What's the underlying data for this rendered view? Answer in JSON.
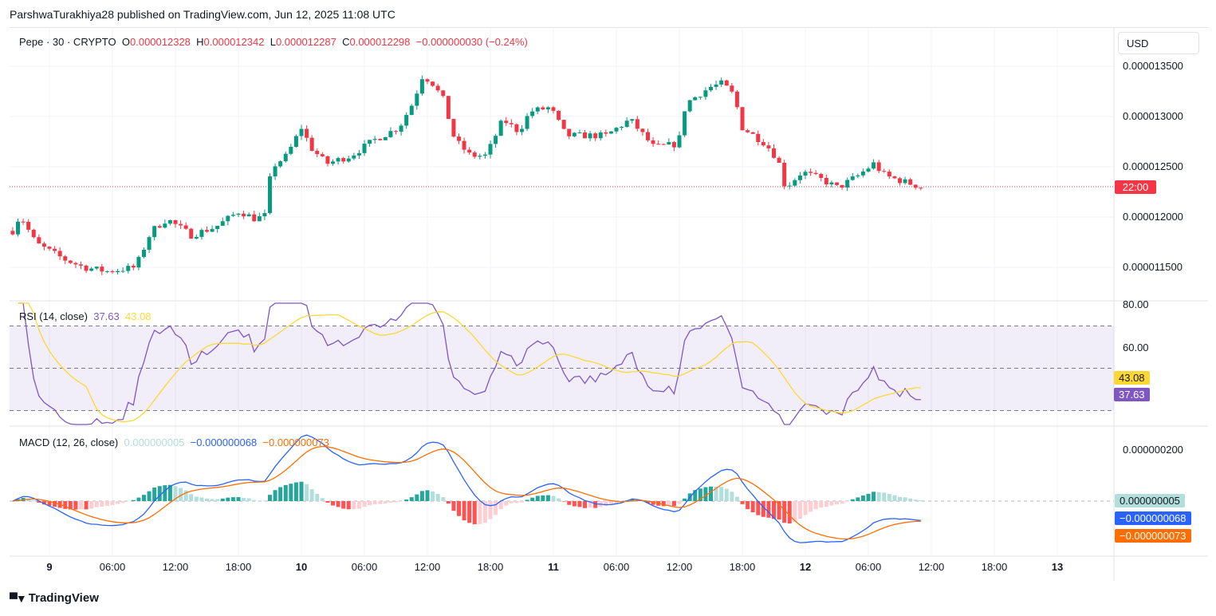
{
  "publish_line": "ParshwaTurakhiya28 published on TradingView.com, Jun 12, 2025 11:08 UTC",
  "legend": {
    "symbol": "Pepe · 30 · CRYPTO",
    "o_label": "O",
    "o": "0.000012328",
    "h_label": "H",
    "h": "0.000012342",
    "l_label": "L",
    "l": "0.000012287",
    "c_label": "C",
    "c": "0.000012298",
    "change": "−0.000000030 (−0.24%)"
  },
  "currency": "USD",
  "price_axis": [
    "0.000013500",
    "0.000013000",
    "0.000012500",
    "0.000012000",
    "0.000011500"
  ],
  "countdown": "22:00",
  "rsi": {
    "label": "RSI (14, close)",
    "value": "37.63",
    "ma": "43.08",
    "axis": [
      "80.00",
      "60.00"
    ]
  },
  "macd": {
    "label": "MACD (12, 26, close)",
    "hist": "0.000000005",
    "macd": "−0.000000068",
    "signal": "−0.000000073",
    "axis": "0.000000200"
  },
  "time_axis": [
    "9",
    "06:00",
    "12:00",
    "18:00",
    "10",
    "06:00",
    "12:00",
    "18:00",
    "11",
    "06:00",
    "12:00",
    "18:00",
    "12",
    "06:00",
    "12:00",
    "18:00",
    "13"
  ],
  "brand": "TradingView",
  "colors": {
    "up": "#089981",
    "down": "#f23645",
    "rsi": "#7e57c2",
    "rsi_ma": "#fdd835",
    "macd": "#2962ff",
    "signal": "#ff6d00"
  },
  "chart_data": {
    "type": "candlestick",
    "unit": "1e-6 USD",
    "x_unit": "hours since Jun 9 00:00 UTC",
    "close_path": [
      [
        -3.6,
        11.84
      ],
      [
        -2.8,
        12.02
      ],
      [
        -1.3,
        11.74
      ],
      [
        1.4,
        11.58
      ],
      [
        3.3,
        11.5
      ],
      [
        5.5,
        11.46
      ],
      [
        8.2,
        11.5
      ],
      [
        9.7,
        11.86
      ],
      [
        11.2,
        11.98
      ],
      [
        13.5,
        11.82
      ],
      [
        15.8,
        11.9
      ],
      [
        18.1,
        12.06
      ],
      [
        19.6,
        11.98
      ],
      [
        20.7,
        12.02
      ],
      [
        21.1,
        12.49
      ],
      [
        22.6,
        12.61
      ],
      [
        24.0,
        12.89
      ],
      [
        24.9,
        12.69
      ],
      [
        26.4,
        12.53
      ],
      [
        28.7,
        12.61
      ],
      [
        31.0,
        12.77
      ],
      [
        33.3,
        12.89
      ],
      [
        34.8,
        13.17
      ],
      [
        35.4,
        13.4
      ],
      [
        36.3,
        13.36
      ],
      [
        37.5,
        13.17
      ],
      [
        38.6,
        12.77
      ],
      [
        40.1,
        12.61
      ],
      [
        41.6,
        12.61
      ],
      [
        43.2,
        12.97
      ],
      [
        44.7,
        12.85
      ],
      [
        45.8,
        13.05
      ],
      [
        47.7,
        13.09
      ],
      [
        49.2,
        12.81
      ],
      [
        51.5,
        12.81
      ],
      [
        53.0,
        12.81
      ],
      [
        55.3,
        12.97
      ],
      [
        57.6,
        12.69
      ],
      [
        59.9,
        12.73
      ],
      [
        60.6,
        13.13
      ],
      [
        62.9,
        13.29
      ],
      [
        64.1,
        13.33
      ],
      [
        65.2,
        13.21
      ],
      [
        66.0,
        12.89
      ],
      [
        68.2,
        12.73
      ],
      [
        69.4,
        12.57
      ],
      [
        70.1,
        12.29
      ],
      [
        71.7,
        12.45
      ],
      [
        73.6,
        12.37
      ],
      [
        75.1,
        12.29
      ],
      [
        77.0,
        12.41
      ],
      [
        78.5,
        12.53
      ],
      [
        79.6,
        12.41
      ],
      [
        83.0,
        12.3
      ]
    ],
    "ylim": [
      11.3,
      13.8
    ]
  }
}
